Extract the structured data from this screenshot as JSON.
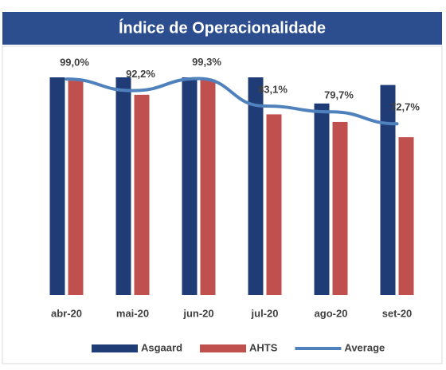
{
  "chart_data": {
    "type": "bar",
    "title": "Índice de Operacionalidade",
    "categories": [
      "abr-20",
      "mai-20",
      "jun-20",
      "jul-20",
      "ago-20",
      "set-20"
    ],
    "series": [
      {
        "name": "Asgaard",
        "color": "#1f3c76",
        "values": [
          100,
          100,
          100,
          100,
          88,
          96.5
        ]
      },
      {
        "name": "AHTS",
        "color": "#c0504d",
        "values": [
          98.5,
          92,
          99,
          83,
          79.5,
          72.5
        ]
      },
      {
        "name": "Average",
        "color": "#4f81bd",
        "type": "line",
        "axis": "y2",
        "values": [
          99.0,
          92.2,
          99.3,
          83.1,
          79.7,
          72.7
        ],
        "value_labels": [
          "99,0%",
          "92,2%",
          "99,3%",
          "83,1%",
          "79,7%",
          "72,7%"
        ]
      }
    ],
    "ylim": [
      0,
      100
    ],
    "y2lim": [
      -28,
      100
    ],
    "legend": "bottom"
  }
}
